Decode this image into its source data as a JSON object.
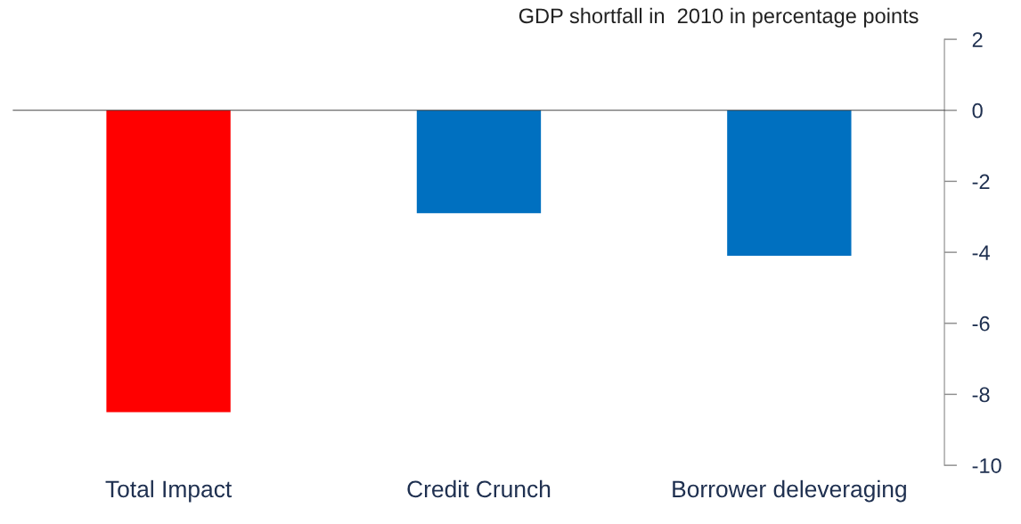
{
  "chart_data": {
    "type": "bar",
    "ylabel": "GDP shortfall in  2010 in percentage points",
    "categories": [
      "Total Impact",
      "Credit Crunch",
      "Borrower deleveraging"
    ],
    "values": [
      -8.5,
      -2.9,
      -4.1
    ],
    "colors": [
      "#ff0000",
      "#0070c0",
      "#0070c0"
    ],
    "ylim": [
      -10,
      2
    ],
    "yticks": [
      -10,
      -8,
      -6,
      -4,
      -2,
      0,
      2
    ],
    "legend": false
  }
}
